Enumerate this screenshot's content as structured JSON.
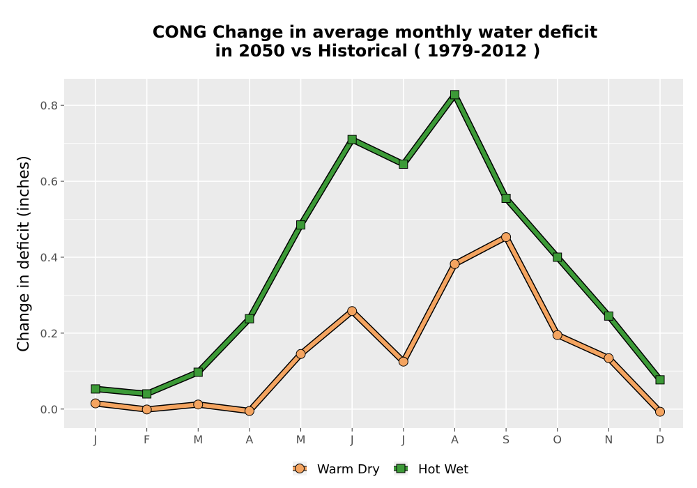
{
  "chart_data": {
    "type": "line",
    "title_line1": "CONG  Change in average monthly water deficit",
    "title_line2": "in 2050 vs Historical ( 1979-2012 )",
    "xlabel": "",
    "ylabel": "Change in deficit (inches)",
    "categories": [
      "J",
      "F",
      "M",
      "A",
      "M",
      "J",
      "J",
      "A",
      "S",
      "O",
      "N",
      "D"
    ],
    "ylim": [
      -0.05,
      0.87
    ],
    "yticks": [
      0.0,
      0.2,
      0.4,
      0.6,
      0.8
    ],
    "ytick_labels": [
      "0.0",
      "0.2",
      "0.4",
      "0.6",
      "0.8"
    ],
    "grid": true,
    "legend_position": "bottom",
    "series": [
      {
        "name": "Warm Dry",
        "marker": "circle",
        "color": "#f4a460",
        "values": [
          0.015,
          -0.001,
          0.012,
          -0.005,
          0.145,
          0.258,
          0.125,
          0.382,
          0.453,
          0.195,
          0.134,
          -0.007
        ]
      },
      {
        "name": "Hot Wet",
        "marker": "square",
        "color": "#3c9a37",
        "values": [
          0.053,
          0.04,
          0.097,
          0.238,
          0.485,
          0.71,
          0.645,
          0.828,
          0.555,
          0.4,
          0.245,
          0.077
        ]
      }
    ]
  }
}
